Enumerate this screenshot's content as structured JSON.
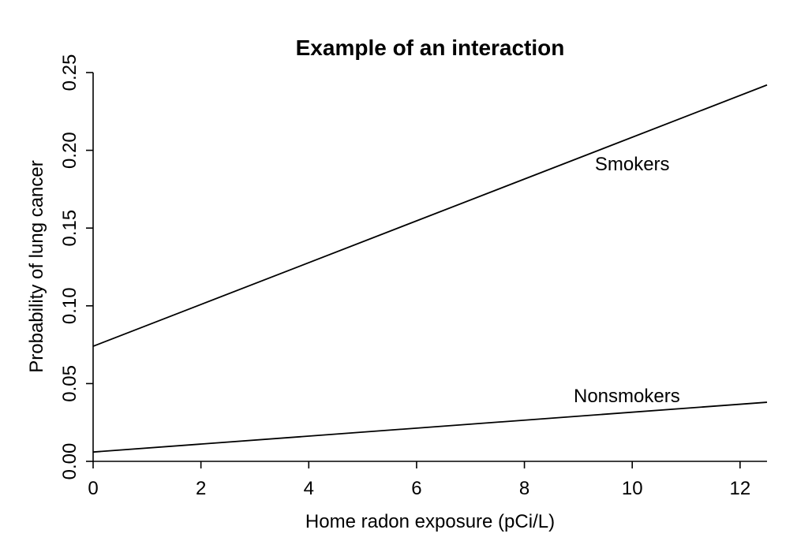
{
  "chart_data": {
    "type": "line",
    "title": "Example of an interaction",
    "xlabel": "Home radon exposure (pCi/L)",
    "ylabel": "Probability of lung cancer",
    "xlim": [
      0,
      12.5
    ],
    "ylim": [
      0,
      0.25
    ],
    "x_ticks": [
      0,
      2,
      4,
      6,
      8,
      10,
      12
    ],
    "y_ticks": [
      0,
      0.05,
      0.1,
      0.15,
      0.2,
      0.25
    ],
    "x_tick_labels": [
      "0",
      "2",
      "4",
      "6",
      "8",
      "10",
      "12"
    ],
    "y_tick_labels": [
      "0.00",
      "0.05",
      "0.10",
      "0.15",
      "0.20",
      "0.25"
    ],
    "series": [
      {
        "name": "Smokers",
        "x": [
          0,
          12.5
        ],
        "y": [
          0.074,
          0.242
        ],
        "label_at": {
          "x": 10.0,
          "y": 0.187
        }
      },
      {
        "name": "Nonsmokers",
        "x": [
          0,
          12.5
        ],
        "y": [
          0.006,
          0.038
        ],
        "label_at": {
          "x": 9.9,
          "y": 0.038
        }
      }
    ],
    "line_color": "#000000",
    "grid": false,
    "legend": "none"
  }
}
